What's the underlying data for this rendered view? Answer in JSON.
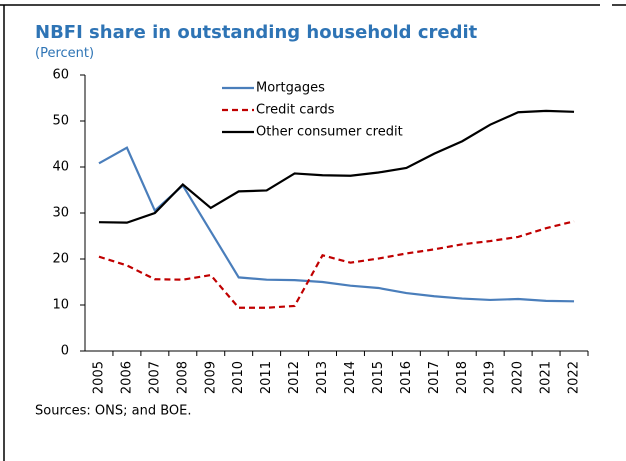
{
  "chart_data": {
    "type": "line",
    "title": "NBFI share in outstanding household credit",
    "subtitle": "(Percent)",
    "categories": [
      "2005",
      "2006",
      "2007",
      "2008",
      "2009",
      "2010",
      "2011",
      "2012",
      "2013",
      "2014",
      "2015",
      "2016",
      "2017",
      "2018",
      "2019",
      "2020",
      "2021",
      "2022"
    ],
    "series": [
      {
        "name": "Mortgages",
        "color": "#4a7ebb",
        "dash": "solid",
        "values": [
          40.8,
          44.2,
          30.5,
          36.0,
          26.0,
          16.0,
          15.5,
          15.4,
          15.0,
          14.2,
          13.7,
          12.6,
          11.9,
          11.4,
          11.1,
          11.3,
          10.9,
          10.8
        ]
      },
      {
        "name": "Credit cards",
        "color": "#c00000",
        "dash": "dashed",
        "values": [
          20.5,
          18.6,
          15.6,
          15.5,
          16.5,
          9.4,
          9.4,
          9.8,
          20.8,
          19.2,
          20.1,
          21.2,
          22.1,
          23.2,
          23.9,
          24.8,
          26.7,
          28.2
        ]
      },
      {
        "name": "Other consumer credit",
        "color": "#000000",
        "dash": "solid",
        "values": [
          28.0,
          27.9,
          30.0,
          36.2,
          31.1,
          34.7,
          34.9,
          38.6,
          38.2,
          38.1,
          38.8,
          39.8,
          42.9,
          45.6,
          49.2,
          51.9,
          52.2,
          52.0
        ]
      }
    ],
    "ylim": [
      0,
      60
    ],
    "yticks": [
      0,
      10,
      20,
      30,
      40,
      50,
      60
    ],
    "grid": false,
    "source": "Sources: ONS; and BOE."
  }
}
